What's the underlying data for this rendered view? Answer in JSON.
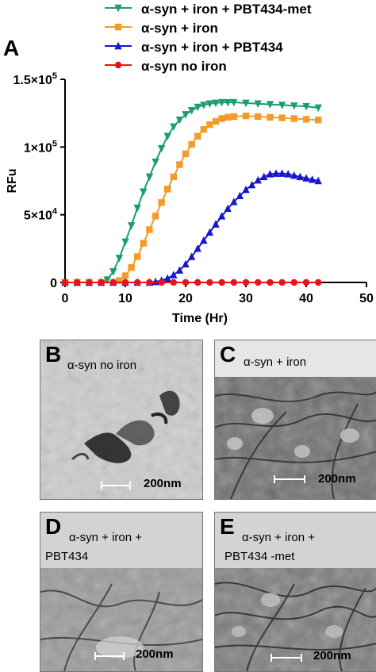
{
  "panel_label_a": "A",
  "chart_data": {
    "type": "scatter",
    "xlabel": "Time  (Hr)",
    "ylabel": "RFu",
    "xlim": [
      0,
      50
    ],
    "ylim": [
      0,
      150000
    ],
    "x_ticks": [
      "0",
      "10",
      "20",
      "30",
      "40",
      "50"
    ],
    "y_ticks": [
      {
        "base": "0",
        "exp": ""
      },
      {
        "base": "5×10",
        "exp": "4"
      },
      {
        "base": "1×10",
        "exp": "5"
      },
      {
        "base": "1.5×10",
        "exp": "5"
      }
    ],
    "series": [
      {
        "name": "α-syn + iron + PBT434-met",
        "color": "#1a9e6e",
        "marker": "triangle-down",
        "x": [
          0,
          2,
          4,
          6,
          7,
          8,
          9,
          10,
          11,
          12,
          13,
          14,
          15,
          16,
          17,
          18,
          19,
          20,
          21,
          22,
          23,
          24,
          25,
          26,
          27,
          28,
          30,
          32,
          34,
          36,
          38,
          40,
          42
        ],
        "y": [
          0,
          0,
          0,
          0,
          2000,
          8000,
          18000,
          30000,
          42000,
          55000,
          67000,
          78000,
          89000,
          99000,
          108000,
          115000,
          120000,
          124000,
          127000,
          129500,
          131000,
          132000,
          132500,
          133000,
          133000,
          133000,
          132500,
          132000,
          131500,
          131000,
          130500,
          130000,
          129000
        ]
      },
      {
        "name": "α-syn + iron",
        "color": "#f39c2b",
        "marker": "square",
        "x": [
          0,
          2,
          4,
          6,
          8,
          9,
          10,
          11,
          12,
          13,
          14,
          15,
          16,
          17,
          18,
          19,
          20,
          21,
          22,
          23,
          24,
          25,
          26,
          27,
          28,
          30,
          32,
          34,
          36,
          38,
          40,
          42
        ],
        "y": [
          0,
          0,
          0,
          0,
          0,
          1500,
          5000,
          11000,
          19000,
          29000,
          39000,
          49000,
          59000,
          69000,
          78000,
          87000,
          95000,
          102000,
          108000,
          113000,
          116500,
          119000,
          121000,
          122000,
          122500,
          123000,
          122500,
          122000,
          121500,
          121000,
          120500,
          120000
        ]
      },
      {
        "name": "α-syn + iron + PBT434",
        "color": "#1616d0",
        "marker": "triangle-up",
        "x": [
          0,
          2,
          4,
          6,
          8,
          10,
          12,
          14,
          15,
          16,
          17,
          18,
          19,
          20,
          21,
          22,
          23,
          24,
          25,
          26,
          27,
          28,
          29,
          30,
          31,
          32,
          33,
          34,
          35,
          36,
          37,
          38,
          39,
          40,
          41,
          42
        ],
        "y": [
          0,
          0,
          0,
          0,
          0,
          0,
          0,
          0,
          500,
          1500,
          3000,
          5500,
          9000,
          13500,
          19000,
          25000,
          31000,
          37000,
          43000,
          49000,
          54500,
          59500,
          64000,
          68500,
          72000,
          75500,
          78000,
          80000,
          80500,
          80500,
          80000,
          79000,
          78000,
          77000,
          76000,
          75000
        ]
      },
      {
        "name": "α-syn no iron",
        "color": "#e8121c",
        "marker": "circle",
        "x": [
          0,
          2,
          4,
          6,
          8,
          10,
          12,
          14,
          16,
          18,
          20,
          22,
          24,
          26,
          28,
          30,
          32,
          34,
          36,
          38,
          40,
          42
        ],
        "y": [
          0,
          0,
          0,
          0,
          0,
          0,
          0,
          0,
          0,
          0,
          0,
          0,
          0,
          0,
          0,
          0,
          0,
          0,
          0,
          0,
          0,
          0
        ]
      }
    ]
  },
  "panels": [
    {
      "id": "b",
      "label": "B",
      "caption": [
        "α-syn no iron"
      ],
      "scale": "200nm"
    },
    {
      "id": "c",
      "label": "C",
      "caption": [
        "α-syn + iron"
      ],
      "scale": "200nm"
    },
    {
      "id": "d",
      "label": "D",
      "caption": [
        "α-syn + iron +",
        "PBT434"
      ],
      "scale": "200nm"
    },
    {
      "id": "e",
      "label": "E",
      "caption": [
        "α-syn + iron +",
        "PBT434 -met"
      ],
      "scale": "200nm"
    }
  ]
}
